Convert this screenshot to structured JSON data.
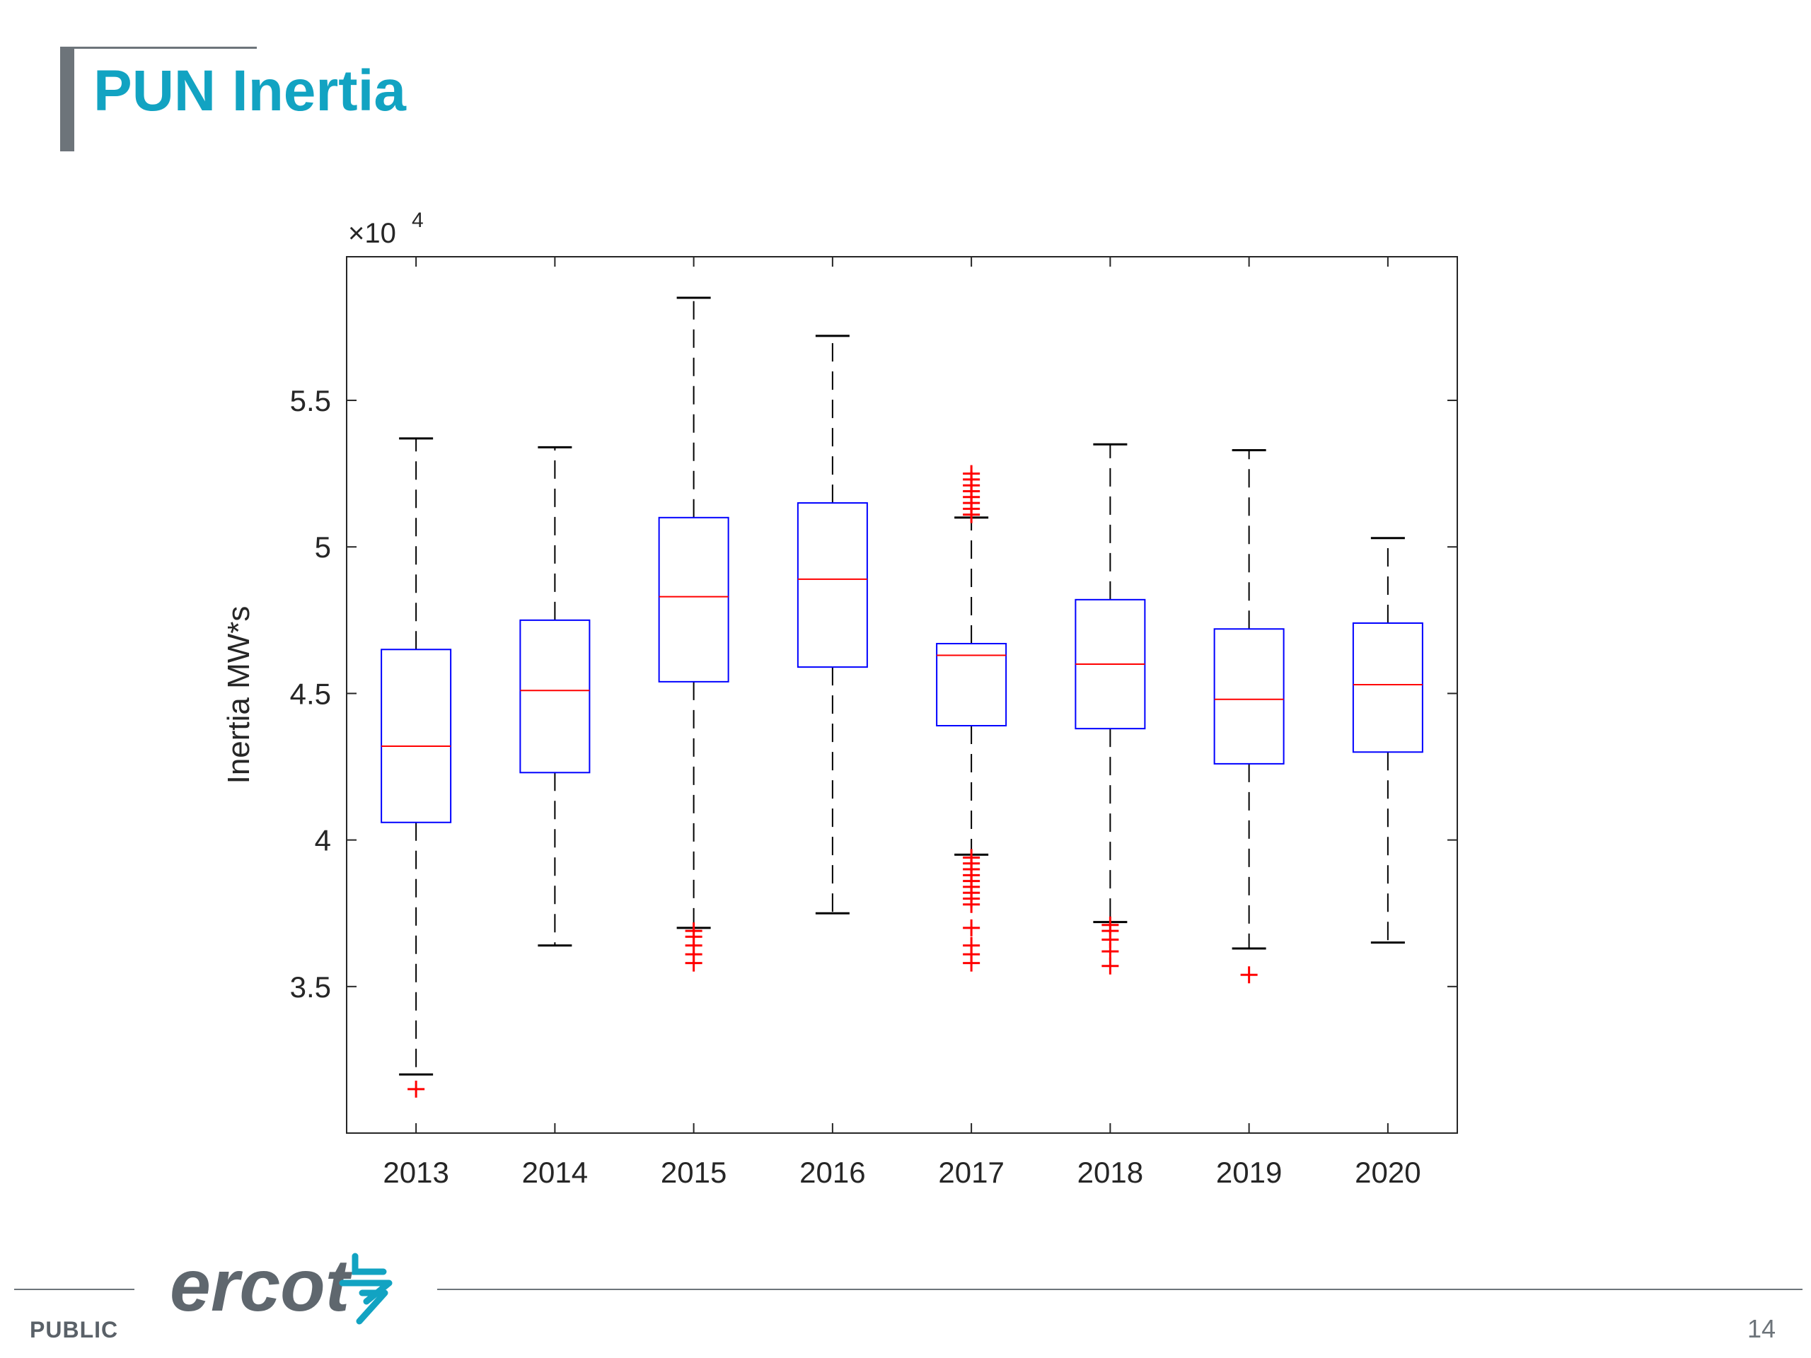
{
  "slide": {
    "title": "PUN Inertia",
    "footer_label": "PUBLIC",
    "page_number": "14",
    "logo_text": "ercot",
    "logo_icon": "ercot-swirl-icon"
  },
  "colors": {
    "title": "#12a3c2",
    "box": "#0000ff",
    "median": "#ff0000",
    "outlier": "#ff0000",
    "whisker": "#000000",
    "footer": "#6d747a"
  },
  "chart_data": {
    "type": "box",
    "title": "",
    "xlabel": "",
    "ylabel": "Inertia MW*s",
    "y_exponent_label": "×10",
    "y_exponent_power": "4",
    "y_scale": 10000,
    "ylim": [
      3.0,
      5.99
    ],
    "y_ticks": [
      3.5,
      4,
      4.5,
      5,
      5.5
    ],
    "y_tick_labels": [
      "3.5",
      "4",
      "4.5",
      "5",
      "5.5"
    ],
    "grid": false,
    "categories": [
      "2013",
      "2014",
      "2015",
      "2016",
      "2017",
      "2018",
      "2019",
      "2020"
    ],
    "boxes": [
      {
        "category": "2013",
        "whisker_low": 3.2,
        "q1": 4.06,
        "median": 4.32,
        "q3": 4.65,
        "whisker_high": 5.37,
        "outliers": [
          3.15
        ]
      },
      {
        "category": "2014",
        "whisker_low": 3.64,
        "q1": 4.23,
        "median": 4.51,
        "q3": 4.75,
        "whisker_high": 5.34,
        "outliers": []
      },
      {
        "category": "2015",
        "whisker_low": 3.7,
        "q1": 4.54,
        "median": 4.83,
        "q3": 5.1,
        "whisker_high": 5.85,
        "outliers": [
          3.58,
          3.61,
          3.64,
          3.67,
          3.69
        ]
      },
      {
        "category": "2016",
        "whisker_low": 3.75,
        "q1": 4.59,
        "median": 4.89,
        "q3": 5.15,
        "whisker_high": 5.72,
        "outliers": []
      },
      {
        "category": "2017",
        "whisker_low": 3.95,
        "q1": 4.39,
        "median": 4.63,
        "q3": 4.67,
        "whisker_high": 5.1,
        "outliers": [
          5.11,
          5.13,
          5.15,
          5.17,
          5.19,
          5.21,
          5.23,
          5.25,
          3.58,
          3.61,
          3.64,
          3.7,
          3.78,
          3.8,
          3.82,
          3.84,
          3.86,
          3.88,
          3.9,
          3.92,
          3.94
        ]
      },
      {
        "category": "2018",
        "whisker_low": 3.72,
        "q1": 4.38,
        "median": 4.6,
        "q3": 4.82,
        "whisker_high": 5.35,
        "outliers": [
          3.57,
          3.62,
          3.66,
          3.69,
          3.71
        ]
      },
      {
        "category": "2019",
        "whisker_low": 3.63,
        "q1": 4.26,
        "median": 4.48,
        "q3": 4.72,
        "whisker_high": 5.33,
        "outliers": [
          3.54
        ]
      },
      {
        "category": "2020",
        "whisker_low": 3.65,
        "q1": 4.3,
        "median": 4.53,
        "q3": 4.74,
        "whisker_high": 5.03,
        "outliers": []
      }
    ]
  }
}
